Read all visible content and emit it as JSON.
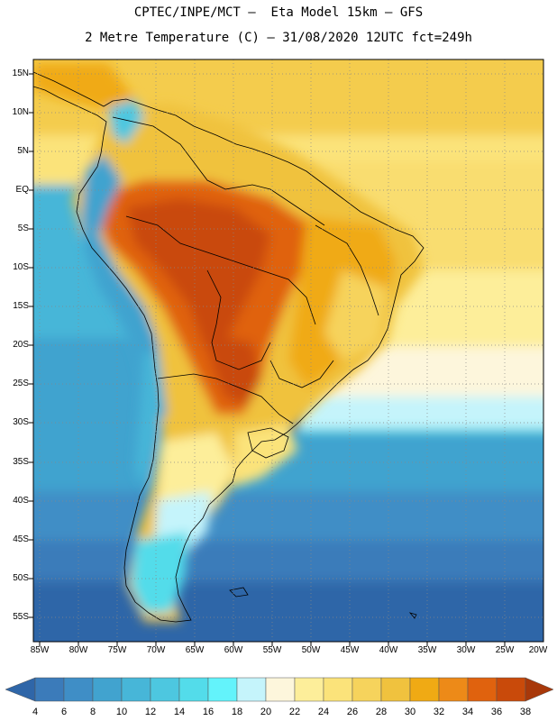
{
  "header": {
    "line1": "CPTEC/INPE/MCT –  Eta Model 15km – GFS",
    "line2": "2 Metre Temperature (C) – 31/08/2020 12UTC fct=249h"
  },
  "map": {
    "lat_labels": [
      "15N",
      "10N",
      "5N",
      "EQ",
      "5S",
      "10S",
      "15S",
      "20S",
      "25S",
      "30S",
      "35S",
      "40S",
      "45S",
      "50S",
      "55S"
    ],
    "lon_labels": [
      "85W",
      "80W",
      "75W",
      "70W",
      "65W",
      "60W",
      "55W",
      "50W",
      "45W",
      "40W",
      "35W",
      "30W",
      "25W",
      "20W"
    ]
  },
  "colorbar": {
    "labels": [
      "4",
      "6",
      "8",
      "10",
      "12",
      "14",
      "16",
      "18",
      "20",
      "22",
      "24",
      "26",
      "28",
      "30",
      "32",
      "34",
      "36",
      "38"
    ],
    "colors": [
      "#2f66a8",
      "#3b7bba",
      "#3f8ec6",
      "#41a3cf",
      "#47b6d8",
      "#4dc7e0",
      "#53dcea",
      "#63f3fb",
      "#c5f4fb",
      "#fdf6dc",
      "#fdee9a",
      "#fbe37a",
      "#f6d35c",
      "#f0c23e",
      "#f0aa14",
      "#ed8a18",
      "#e0620e",
      "#c94a0a",
      "#a8380a"
    ]
  }
}
